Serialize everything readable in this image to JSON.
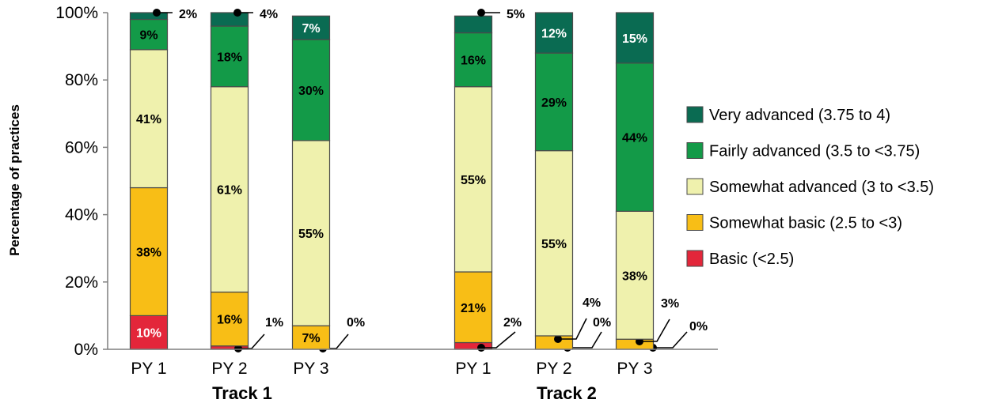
{
  "chart_data": {
    "type": "bar",
    "stacked": true,
    "ylabel": "Percentage of practices",
    "ylim": [
      0,
      100
    ],
    "yticks": [
      "0%",
      "20%",
      "40%",
      "60%",
      "80%",
      "100%"
    ],
    "groups": [
      {
        "label": "Track 1",
        "bars": [
          {
            "label": "PY 1",
            "values": [
              10,
              38,
              41,
              9,
              2
            ],
            "labels": [
              "10%",
              "38%",
              "41%",
              "9%",
              "2%"
            ]
          },
          {
            "label": "PY 2",
            "values": [
              1,
              16,
              61,
              18,
              4
            ],
            "labels": [
              "1%",
              "16%",
              "61%",
              "18%",
              "4%"
            ]
          },
          {
            "label": "PY 3",
            "values": [
              0,
              7,
              55,
              30,
              7
            ],
            "labels": [
              "0%",
              "7%",
              "55%",
              "30%",
              "7%"
            ]
          }
        ]
      },
      {
        "label": "Track 2",
        "bars": [
          {
            "label": "PY 1",
            "values": [
              2,
              21,
              55,
              16,
              5
            ],
            "labels": [
              "2%",
              "21%",
              "55%",
              "16%",
              "5%"
            ]
          },
          {
            "label": "PY 2",
            "values": [
              0,
              4,
              55,
              29,
              12
            ],
            "labels": [
              "0%",
              "4%",
              "55%",
              "29%",
              "12%"
            ]
          },
          {
            "label": "PY 3",
            "values": [
              0,
              3,
              38,
              44,
              15
            ],
            "labels": [
              "0%",
              "3%",
              "38%",
              "44%",
              "15%"
            ]
          }
        ]
      }
    ],
    "series": [
      {
        "name": "Basic (<2.5)",
        "color": "#e3263a",
        "text_color": "#ffffff"
      },
      {
        "name": "Somewhat basic (2.5 to <3)",
        "color": "#f8be16",
        "text_color": "#000000"
      },
      {
        "name": "Somewhat advanced (3 to <3.5)",
        "color": "#eff1ad",
        "text_color": "#000000"
      },
      {
        "name": "Fairly advanced (3.5 to <3.75)",
        "color": "#139a48",
        "text_color": "#000000"
      },
      {
        "name": "Very advanced (3.75 to 4)",
        "color": "#0a6b52",
        "text_color": "#ffffff"
      }
    ],
    "legend_order": [
      4,
      3,
      2,
      1,
      0
    ],
    "legend_position": "right",
    "grid": false
  }
}
